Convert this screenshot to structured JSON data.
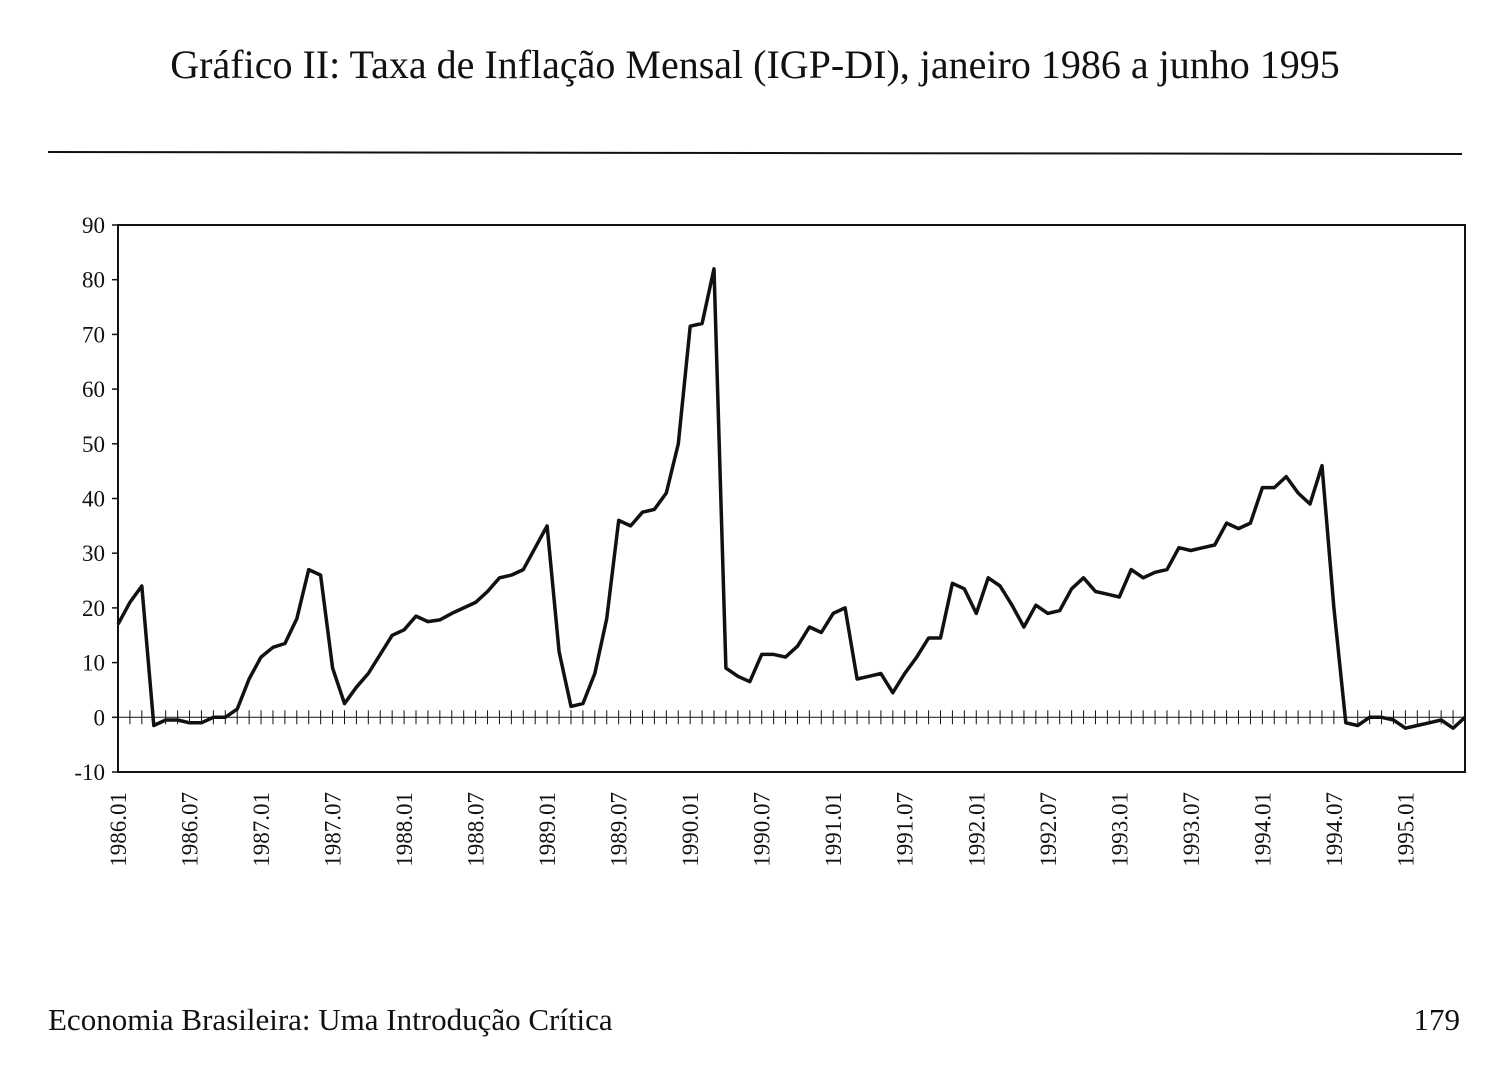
{
  "chart_data": {
    "type": "line",
    "title": "Gráfico II: Taxa de Inflação Mensal (IGP-DI), janeiro 1986 a junho 1995",
    "categories": [
      "1986.01",
      null,
      null,
      null,
      null,
      null,
      "1986.07",
      null,
      null,
      null,
      null,
      null,
      "1987.01",
      null,
      null,
      null,
      null,
      null,
      "1987.07",
      null,
      null,
      null,
      null,
      null,
      "1988.01",
      null,
      null,
      null,
      null,
      null,
      "1988.07",
      null,
      null,
      null,
      null,
      null,
      "1989.01",
      null,
      null,
      null,
      null,
      null,
      "1989.07",
      null,
      null,
      null,
      null,
      null,
      "1990.01",
      null,
      null,
      null,
      null,
      null,
      "1990.07",
      null,
      null,
      null,
      null,
      null,
      "1991.01",
      null,
      null,
      null,
      null,
      null,
      "1991.07",
      null,
      null,
      null,
      null,
      null,
      "1992.01",
      null,
      null,
      null,
      null,
      null,
      "1992.07",
      null,
      null,
      null,
      null,
      null,
      "1993.01",
      null,
      null,
      null,
      null,
      null,
      "1993.07",
      null,
      null,
      null,
      null,
      null,
      "1994.01",
      null,
      null,
      null,
      null,
      null,
      "1994.07",
      null,
      null,
      null,
      null,
      null,
      "1995.01",
      null,
      null,
      null,
      null,
      null
    ],
    "series": [
      {
        "color": "#111111",
        "values": [
          17,
          21,
          24,
          -1.5,
          -0.5,
          -0.5,
          -1,
          -1,
          0,
          0,
          1.5,
          7,
          11,
          12.8,
          13.5,
          18,
          27,
          26,
          9,
          2.5,
          5.5,
          8,
          11.5,
          15,
          16,
          18.5,
          17.5,
          17.8,
          19,
          20,
          21,
          23,
          25.5,
          26,
          27,
          31,
          35,
          12,
          2,
          2.5,
          8,
          18,
          36,
          35,
          37.5,
          38,
          41,
          50,
          71.5,
          72,
          82,
          9,
          7.5,
          6.5,
          11.5,
          11.5,
          11,
          13,
          16.5,
          15.5,
          19,
          20,
          7,
          7.5,
          8,
          4.5,
          8,
          11,
          14.5,
          14.5,
          24.5,
          23.5,
          19,
          25.5,
          24,
          20.5,
          16.5,
          20.5,
          19,
          19.5,
          23.5,
          25.5,
          23,
          22.5,
          22,
          27,
          25.5,
          26.5,
          27,
          31,
          30.5,
          31,
          31.5,
          35.5,
          34.5,
          35.5,
          42,
          42,
          44,
          41,
          39,
          46,
          20,
          -1,
          -1.5,
          0,
          0,
          -0.5,
          -2,
          -1.5,
          -1,
          -0.5,
          -2,
          0
        ]
      }
    ],
    "ylim": [
      -10,
      90
    ],
    "yticks": [
      -10,
      0,
      10,
      20,
      30,
      40,
      50,
      60,
      70,
      80,
      90
    ],
    "grid": false
  },
  "footer": {
    "book": "Economia Brasileira: Uma Introdução Crítica",
    "page": "179"
  }
}
